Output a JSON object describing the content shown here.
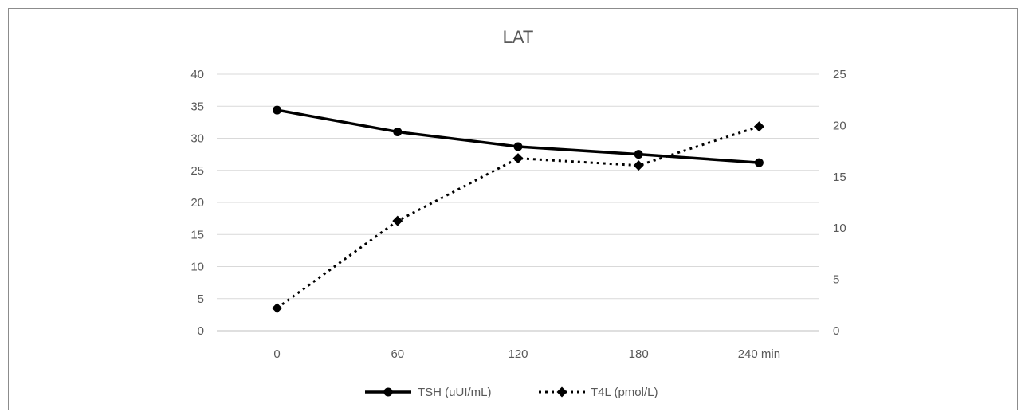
{
  "chart_data": {
    "type": "line",
    "title": "LAT",
    "categories": [
      "0",
      "60",
      "120",
      "180",
      "240 min"
    ],
    "y_left": {
      "ticks": [
        "0",
        "5",
        "10",
        "15",
        "20",
        "25",
        "30",
        "35",
        "40"
      ],
      "lim": [
        0,
        40
      ]
    },
    "y_right": {
      "ticks": [
        "0",
        "5",
        "10",
        "15",
        "20",
        "25"
      ],
      "lim": [
        0,
        25
      ]
    },
    "grid": true,
    "legend_position": "bottom",
    "series": [
      {
        "name": "TSH (uUI/mL)",
        "axis": "left",
        "style": "solid",
        "marker": "circle",
        "color": "#000000",
        "values": [
          34.4,
          31.0,
          28.7,
          27.5,
          26.2
        ]
      },
      {
        "name": "T4L (pmol/L)",
        "axis": "right",
        "style": "dotted",
        "marker": "diamond",
        "color": "#000000",
        "values": [
          2.2,
          10.7,
          16.8,
          16.1,
          19.9
        ]
      }
    ]
  }
}
